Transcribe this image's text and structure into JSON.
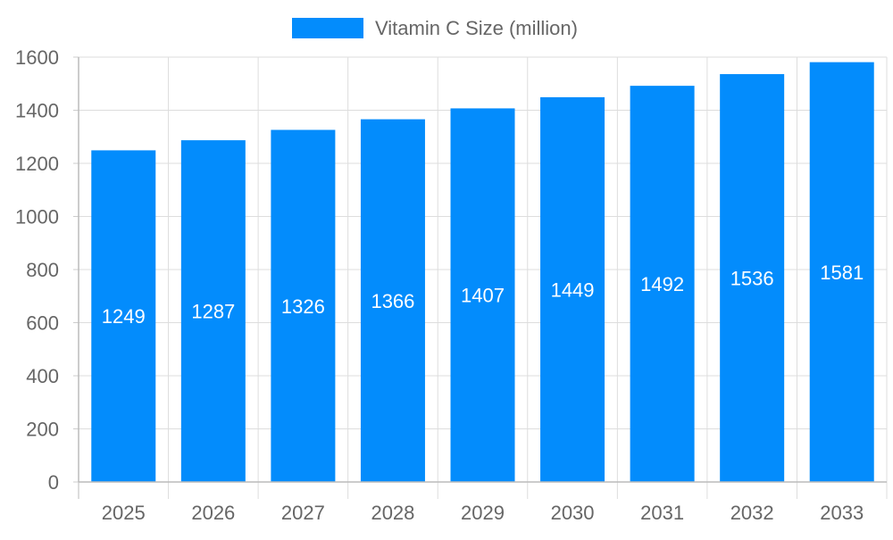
{
  "chart_data": {
    "type": "bar",
    "title": "",
    "xlabel": "",
    "ylabel": "",
    "categories": [
      "2025",
      "2026",
      "2027",
      "2028",
      "2029",
      "2030",
      "2031",
      "2032",
      "2033"
    ],
    "series": [
      {
        "name": "Vitamin C Size (million)",
        "values": [
          1249,
          1287,
          1326,
          1366,
          1407,
          1449,
          1492,
          1536,
          1581
        ],
        "color": "#038cfc"
      }
    ],
    "ylim": [
      0,
      1600
    ],
    "yticks": [
      0,
      200,
      400,
      600,
      800,
      1000,
      1200,
      1400,
      1600
    ],
    "grid": true,
    "legend": "top-center",
    "data_labels": "inside-center"
  }
}
